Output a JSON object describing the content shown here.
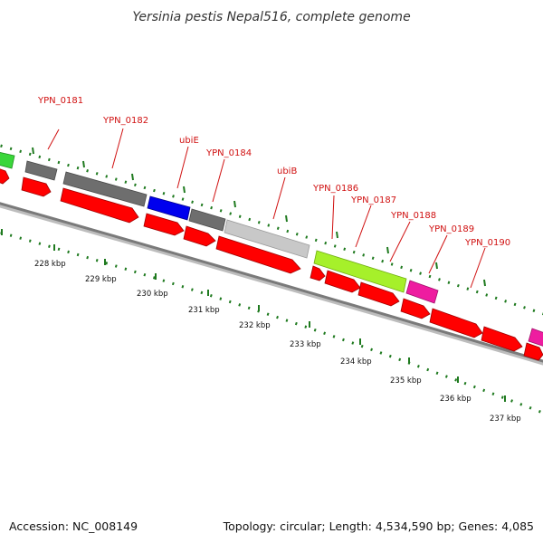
{
  "title": "Yersinia pestis Nepal516, complete genome",
  "footer": {
    "accession": "Accession: NC_008149",
    "summary": "Topology: circular; Length: 4,534,590 bp; Genes: 4,085"
  },
  "colors": {
    "red": "#ff0000",
    "dark_gray": "#6e6e6e",
    "light_gray": "#c8c8c8",
    "blue": "#0000ee",
    "lime": "#a6f02a",
    "magenta": "#ee1ca0",
    "green": "#3ad63a",
    "tick_green": "#1f7a1f",
    "backbone": "#7a7a7a",
    "label_red": "#d01010"
  },
  "tick_labels": [
    "228 kbp",
    "229 kbp",
    "230 kbp",
    "231 kbp",
    "232 kbp",
    "233 kbp",
    "234 kbp",
    "235 kbp",
    "236 kbp",
    "237 kbp"
  ],
  "gene_labels": [
    {
      "id": "YPN_0181",
      "text": "YPN_0181"
    },
    {
      "id": "YPN_0182",
      "text": "YPN_0182"
    },
    {
      "id": "ubiE",
      "text": "ubiE"
    },
    {
      "id": "YPN_0184",
      "text": "YPN_0184"
    },
    {
      "id": "ubiB",
      "text": "ubiB"
    },
    {
      "id": "YPN_0186",
      "text": "YPN_0186"
    },
    {
      "id": "YPN_0187",
      "text": "YPN_0187"
    },
    {
      "id": "YPN_0188",
      "text": "YPN_0188"
    },
    {
      "id": "YPN_0189",
      "text": "YPN_0189"
    },
    {
      "id": "YPN_0190",
      "text": "YPN_0190"
    }
  ]
}
